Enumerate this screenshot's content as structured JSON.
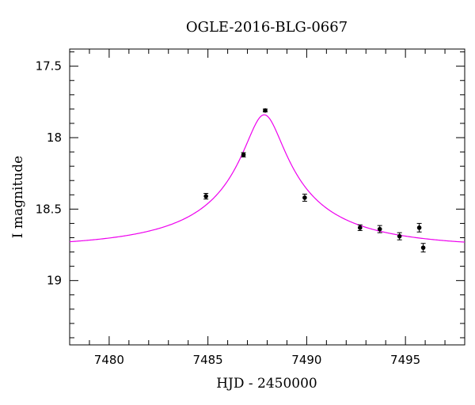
{
  "chart_data": {
    "type": "scatter",
    "title": "OGLE-2016-BLG-0667",
    "xlabel": "HJD - 2450000",
    "ylabel": "I magnitude",
    "xlim": [
      7478,
      7498
    ],
    "ylim": [
      19.45,
      17.38
    ],
    "y_inverted": true,
    "grid": false,
    "xticks": [
      7480,
      7485,
      7490,
      7495
    ],
    "xtick_labels": [
      "7480",
      "7485",
      "7490",
      "7495"
    ],
    "yticks": [
      17.5,
      18,
      18.5,
      19
    ],
    "ytick_labels": [
      "17.5",
      "18",
      "18.5",
      "19"
    ],
    "series": [
      {
        "kind": "data",
        "color": "#000000",
        "points": [
          {
            "x": 7484.9,
            "y": 18.41,
            "err": 0.02
          },
          {
            "x": 7486.8,
            "y": 18.12,
            "err": 0.015
          },
          {
            "x": 7487.9,
            "y": 17.81,
            "err": 0.01
          },
          {
            "x": 7489.9,
            "y": 18.42,
            "err": 0.025
          },
          {
            "x": 7492.7,
            "y": 18.63,
            "err": 0.02
          },
          {
            "x": 7493.7,
            "y": 18.64,
            "err": 0.025
          },
          {
            "x": 7494.7,
            "y": 18.69,
            "err": 0.025
          },
          {
            "x": 7495.7,
            "y": 18.63,
            "err": 0.03
          },
          {
            "x": 7495.9,
            "y": 18.77,
            "err": 0.03
          }
        ]
      },
      {
        "kind": "model",
        "color": "#ee00ee",
        "model": {
          "peak_x": 7487.85,
          "peak_mag": 17.84,
          "baseline_mag": 18.77,
          "u0": 0.12,
          "tE": 8.0
        }
      }
    ]
  }
}
